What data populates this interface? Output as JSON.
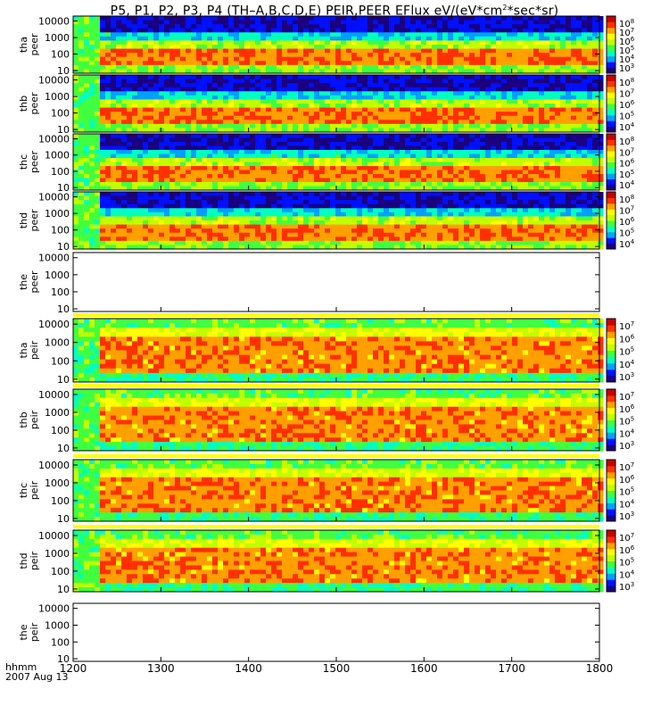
{
  "title_parts": {
    "main": "P5, P1, P2, P3, P4 (TH–A,B,C,D,E) PEIR,PEER EFlux eV/(eV*cm",
    "sup": "2",
    "tail": "*sec*sr)"
  },
  "x_axis": {
    "units_label": "hhmm",
    "date_label": "2007 Aug 13",
    "range": [
      1200,
      1800
    ]
  },
  "colors": {
    "colorbar": [
      "#1a0080",
      "#0010ff",
      "#00a0ff",
      "#00ffc0",
      "#40ff40",
      "#c0ff00",
      "#ffff00",
      "#ffa000",
      "#ff3000",
      "#c80000"
    ],
    "panel_bg": "#ffffff",
    "fill_bar": "#ffff00",
    "trace": "#000000"
  },
  "chart_data": {
    "type": "heatmap",
    "title": "P5, P1, P2, P3, P4 (TH-A,B,C,D,E) PEIR,PEER EFlux eV/(eV*cm2*sec*sr)",
    "xlabel": "hhmm",
    "x_ticks": [
      "1200",
      "1300",
      "1400",
      "1500",
      "1600",
      "1700",
      "1800"
    ],
    "x_values": [
      1200,
      1300,
      1400,
      1500,
      1600,
      1700,
      1800
    ],
    "y_scale": "log",
    "ylim": [
      7,
      20000
    ],
    "panels": [
      {
        "probe": "thа",
        "id": "tha",
        "species": "peer",
        "label_top": "tha",
        "label_bot": "peer",
        "y_ticks": [
          "10000",
          "1000",
          "100",
          "10"
        ],
        "y_values": [
          10000,
          1000,
          100,
          10
        ],
        "colorbar_ticks": [
          {
            "m": "10",
            "e": "8"
          },
          {
            "m": "10",
            "e": "7"
          },
          {
            "m": "10",
            "e": "6"
          },
          {
            "m": "10",
            "e": "5"
          },
          {
            "m": "10",
            "e": "4"
          },
          {
            "m": "10",
            "e": "3"
          }
        ],
        "has_data": true
      },
      {
        "id": "thb",
        "species": "peer",
        "label_top": "thb",
        "label_bot": "peer",
        "y_ticks": [
          "10000",
          "1000",
          "100",
          "10"
        ],
        "y_values": [
          10000,
          1000,
          100,
          10
        ],
        "colorbar_ticks": [
          {
            "m": "10",
            "e": "8"
          },
          {
            "m": "10",
            "e": "7"
          },
          {
            "m": "10",
            "e": "6"
          },
          {
            "m": "10",
            "e": "5"
          },
          {
            "m": "10",
            "e": "4"
          }
        ],
        "has_data": true
      },
      {
        "id": "thc",
        "species": "peer",
        "label_top": "thc",
        "label_bot": "peer",
        "y_ticks": [
          "10000",
          "1000",
          "100",
          "10"
        ],
        "y_values": [
          10000,
          1000,
          100,
          10
        ],
        "colorbar_ticks": [
          {
            "m": "10",
            "e": "8"
          },
          {
            "m": "10",
            "e": "7"
          },
          {
            "m": "10",
            "e": "6"
          },
          {
            "m": "10",
            "e": "5"
          },
          {
            "m": "10",
            "e": "4"
          }
        ],
        "has_data": true
      },
      {
        "id": "thd",
        "species": "peer",
        "label_top": "thd",
        "label_bot": "peer",
        "y_ticks": [
          "10000",
          "1000",
          "100",
          "10"
        ],
        "y_values": [
          10000,
          1000,
          100,
          10
        ],
        "colorbar_ticks": [
          {
            "m": "10",
            "e": "8"
          },
          {
            "m": "10",
            "e": "7"
          },
          {
            "m": "10",
            "e": "6"
          },
          {
            "m": "10",
            "e": "5"
          },
          {
            "m": "10",
            "e": "4"
          }
        ],
        "has_data": true
      },
      {
        "id": "the",
        "species": "peer",
        "label_top": "the",
        "label_bot": "peer",
        "y_ticks": [
          "10000",
          "1000",
          "100",
          "10"
        ],
        "y_values": [
          10000,
          1000,
          100,
          10
        ],
        "colorbar_ticks": [],
        "has_data": false
      },
      {
        "id": "tha",
        "species": "peir",
        "label_top": "tha",
        "label_bot": "peir",
        "y_ticks": [
          "10000",
          "1000",
          "100",
          "10"
        ],
        "y_values": [
          10000,
          1000,
          100,
          10
        ],
        "colorbar_ticks": [
          {
            "m": "10",
            "e": "7"
          },
          {
            "m": "10",
            "e": "6"
          },
          {
            "m": "10",
            "e": "5"
          },
          {
            "m": "10",
            "e": "4"
          },
          {
            "m": "10",
            "e": "3"
          }
        ],
        "has_data": true
      },
      {
        "id": "thb",
        "species": "peir",
        "label_top": "thb",
        "label_bot": "peir",
        "y_ticks": [
          "10000",
          "1000",
          "100",
          "10"
        ],
        "y_values": [
          10000,
          1000,
          100,
          10
        ],
        "colorbar_ticks": [
          {
            "m": "10",
            "e": "7"
          },
          {
            "m": "10",
            "e": "6"
          },
          {
            "m": "10",
            "e": "5"
          },
          {
            "m": "10",
            "e": "4"
          },
          {
            "m": "10",
            "e": "3"
          }
        ],
        "has_data": true
      },
      {
        "id": "thc",
        "species": "peir",
        "label_top": "thc",
        "label_bot": "peir",
        "y_ticks": [
          "10000",
          "1000",
          "100",
          "10"
        ],
        "y_values": [
          10000,
          1000,
          100,
          10
        ],
        "colorbar_ticks": [
          {
            "m": "10",
            "e": "7"
          },
          {
            "m": "10",
            "e": "6"
          },
          {
            "m": "10",
            "e": "5"
          },
          {
            "m": "10",
            "e": "4"
          },
          {
            "m": "10",
            "e": "3"
          }
        ],
        "has_data": true
      },
      {
        "id": "thd",
        "species": "peir",
        "label_top": "thd",
        "label_bot": "peir",
        "y_ticks": [
          "10000",
          "1000",
          "100",
          "10"
        ],
        "y_values": [
          10000,
          1000,
          100,
          10
        ],
        "colorbar_ticks": [
          {
            "m": "10",
            "e": "7"
          },
          {
            "m": "10",
            "e": "6"
          },
          {
            "m": "10",
            "e": "5"
          },
          {
            "m": "10",
            "e": "4"
          },
          {
            "m": "10",
            "e": "3"
          }
        ],
        "has_data": true
      },
      {
        "id": "the",
        "species": "peir",
        "label_top": "the",
        "label_bot": "peir",
        "y_ticks": [
          "10000",
          "1000",
          "100",
          "10"
        ],
        "y_values": [
          10000,
          1000,
          100,
          10
        ],
        "colorbar_ticks": [],
        "has_data": false
      }
    ]
  }
}
